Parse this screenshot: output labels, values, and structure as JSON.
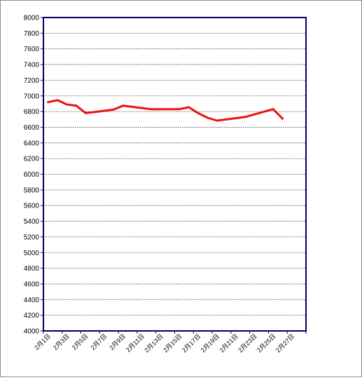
{
  "chart_data": {
    "type": "line",
    "title": "",
    "xlabel": "",
    "ylabel": "",
    "ylim": [
      4000,
      8000
    ],
    "y_ticks": [
      4000,
      4200,
      4400,
      4600,
      4800,
      5000,
      5200,
      5400,
      5600,
      5800,
      6000,
      6200,
      6400,
      6600,
      6800,
      7000,
      7200,
      7400,
      7600,
      7800,
      8000
    ],
    "x_ticks": [
      "2月1日",
      "2月3日",
      "2月5日",
      "2月7日",
      "2月9日",
      "2月11日",
      "2月13日",
      "2月15日",
      "2月17日",
      "2月19日",
      "2月21日",
      "2月23日",
      "2月25日",
      "2月27日"
    ],
    "x_range_days": [
      1,
      28
    ],
    "grid": true,
    "legend": "none",
    "series": [
      {
        "color": "#ee1111",
        "points": [
          {
            "x": "2月1日",
            "y": 6920
          },
          {
            "x": "2月2日",
            "y": 6945
          },
          {
            "x": "2月3日",
            "y": 6890
          },
          {
            "x": "2月4日",
            "y": 6875
          },
          {
            "x": "2月5日",
            "y": 6780
          },
          {
            "x": "2月6日",
            "y": 6795
          },
          {
            "x": "2月7日",
            "y": 6810
          },
          {
            "x": "2月8日",
            "y": 6825
          },
          {
            "x": "2月9日",
            "y": 6875
          },
          {
            "x": "2月11日",
            "y": 6845
          },
          {
            "x": "2月12日",
            "y": 6830
          },
          {
            "x": "2月15日",
            "y": 6830
          },
          {
            "x": "2月16日",
            "y": 6855
          },
          {
            "x": "2月17日",
            "y": 6780
          },
          {
            "x": "2月18日",
            "y": 6720
          },
          {
            "x": "2月19日",
            "y": 6685
          },
          {
            "x": "2月22日",
            "y": 6730
          },
          {
            "x": "2月25日",
            "y": 6830
          },
          {
            "x": "2月26日",
            "y": 6710
          }
        ]
      }
    ]
  }
}
